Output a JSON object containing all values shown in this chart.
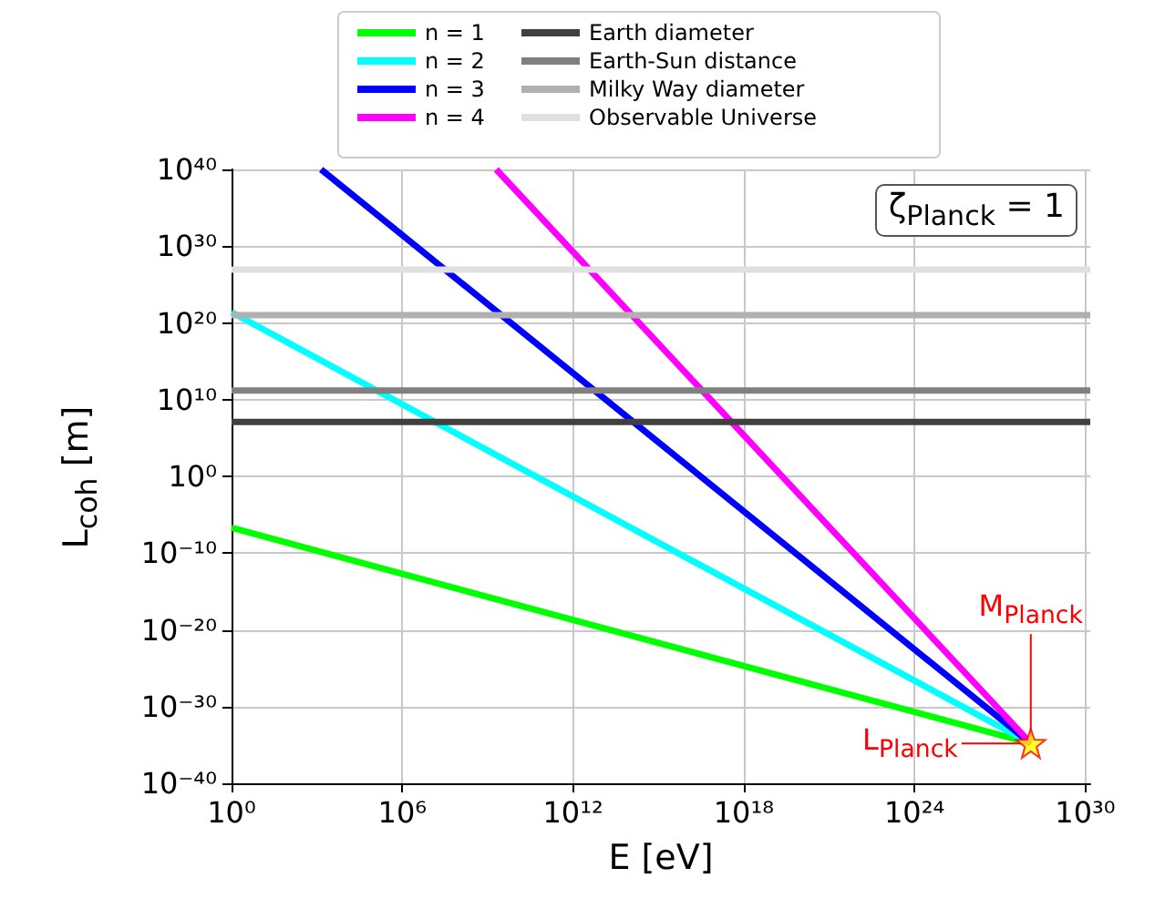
{
  "chart_data": {
    "type": "line",
    "xlabel": "E [eV]",
    "ylabel": "L$_{coh}$ [m]",
    "log": "xy",
    "grid": true,
    "legend": "top",
    "marker": "none",
    "line_style": "solid",
    "xlim": [
      1,
      1.5e+30
    ],
    "ylim": [
      1e-40,
      1e+40
    ],
    "xticks": [
      {
        "value": 1,
        "label": "10⁰"
      },
      {
        "value": 1000000.0,
        "label": "10⁶"
      },
      {
        "value": 1000000000000.0,
        "label": "10¹²"
      },
      {
        "value": 1e+18,
        "label": "10¹⁸"
      },
      {
        "value": 1e+24,
        "label": "10²⁴"
      },
      {
        "value": 1e+30,
        "label": "10³⁰"
      }
    ],
    "yticks": [
      {
        "value": 1e-40,
        "label": "10⁻⁴⁰"
      },
      {
        "value": 1e-30,
        "label": "10⁻³⁰"
      },
      {
        "value": 1e-20,
        "label": "10⁻²⁰"
      },
      {
        "value": 1e-10,
        "label": "10⁻¹⁰"
      },
      {
        "value": 1,
        "label": "10⁰"
      },
      {
        "value": 10000000000.0,
        "label": "10¹⁰"
      },
      {
        "value": 1e+20,
        "label": "10²⁰"
      },
      {
        "value": 1e+30,
        "label": "10³⁰"
      },
      {
        "value": 1e+40,
        "label": "10⁴⁰"
      }
    ],
    "series": [
      {
        "name": "n = 1",
        "color": "#00ff00",
        "x": [
          1,
          1.22e+28
        ],
        "values": [
          2e-07,
          1.6e-35
        ]
      },
      {
        "name": "n = 2",
        "color": "#00ffff",
        "x": [
          1,
          1.22e+28
        ],
        "values": [
          2.4e+21,
          1.6e-35
        ]
      },
      {
        "name": "n = 3",
        "color": "#0000ff",
        "x": [
          1400,
          1.22e+28
        ],
        "values": [
          1e+40,
          1.6e-35
        ]
      },
      {
        "name": "n = 4",
        "color": "#ff00ff",
        "x": [
          2000000000.0,
          1.22e+28
        ],
        "values": [
          1e+40,
          1.6e-35
        ]
      },
      {
        "name": "Earth diameter",
        "color": "#404040",
        "x": [
          1,
          1.5e+30
        ],
        "values": [
          12700000.0,
          12700000.0
        ]
      },
      {
        "name": "Earth-Sun distance",
        "color": "#808080",
        "x": [
          1,
          1.5e+30
        ],
        "values": [
          150000000000.0,
          150000000000.0
        ]
      },
      {
        "name": "Milky Way diameter",
        "color": "#b0b0b0",
        "x": [
          1,
          1.5e+30
        ],
        "values": [
          1e+21,
          1e+21
        ]
      },
      {
        "name": "Observable Universe",
        "color": "#e0e0e0",
        "x": [
          1,
          1.5e+30
        ],
        "values": [
          8.8e+26,
          8.8e+26
        ]
      },
      {
        "type": "scatter",
        "marker": "star",
        "color": "#ffff00",
        "x": [
          1.22e+28
        ],
        "values": [
          1.6e-35
        ]
      }
    ],
    "annotations": [
      "ζ$_{Planck}$ = 1",
      {
        "text": "M$_{Planck}$",
        "x": 1.22e+28,
        "y": 1.6e-35
      },
      {
        "text": "L$_{Planck}$",
        "x": 1.22e+28,
        "y": 1.6e-35
      }
    ]
  }
}
